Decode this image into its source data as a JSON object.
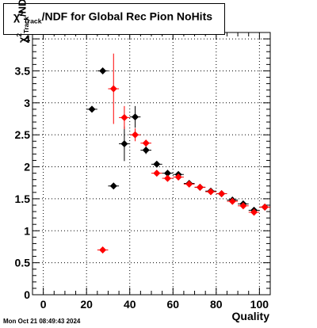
{
  "chart_data": {
    "type": "scatter",
    "title_prefix": "χ",
    "title_sup": "2",
    "title_sub": "Track",
    "title_suffix": "/NDF for Global Rec Pion NoHits",
    "ylabel_prefix": "χ",
    "ylabel_sup": "2",
    "ylabel_sub": "Track",
    "ylabel_suffix": "/NDF",
    "xlabel": "Quality",
    "xlim": [
      -5,
      105
    ],
    "ylim": [
      0,
      4.1
    ],
    "xticks": [
      0,
      20,
      40,
      60,
      80,
      100
    ],
    "yticks": [
      0,
      0.5,
      1,
      1.5,
      2,
      2.5,
      3,
      3.5,
      4
    ],
    "ytick_labels": [
      "0",
      "0.5",
      "1",
      "1.5",
      "2",
      "2.5",
      "3",
      "3.5",
      "4"
    ],
    "grid": true,
    "series": [
      {
        "color": "#000000",
        "points": [
          {
            "x": 22.5,
            "y": 2.9,
            "err": 0.04
          },
          {
            "x": 27.5,
            "y": 3.5,
            "err": 0.03
          },
          {
            "x": 32.5,
            "y": 1.7,
            "err": 0.03
          },
          {
            "x": 37.5,
            "y": 2.36,
            "err": 0.27
          },
          {
            "x": 42.5,
            "y": 2.78,
            "err": 0.17
          },
          {
            "x": 47.5,
            "y": 2.26,
            "err": 0.06
          },
          {
            "x": 52.5,
            "y": 2.04,
            "err": 0.04
          },
          {
            "x": 57.5,
            "y": 1.9,
            "err": 0.03
          },
          {
            "x": 62.5,
            "y": 1.88,
            "err": 0.03
          },
          {
            "x": 67.5,
            "y": 1.74,
            "err": 0.02
          },
          {
            "x": 72.5,
            "y": 1.68,
            "err": 0.02
          },
          {
            "x": 77.5,
            "y": 1.62,
            "err": 0.02
          },
          {
            "x": 82.5,
            "y": 1.58,
            "err": 0.02
          },
          {
            "x": 87.5,
            "y": 1.48,
            "err": 0.02
          },
          {
            "x": 92.5,
            "y": 1.42,
            "err": 0.02
          },
          {
            "x": 97.5,
            "y": 1.32,
            "err": 0.02
          },
          {
            "x": 102.5,
            "y": 1.37,
            "err": 0.02
          }
        ]
      },
      {
        "color": "#ff0000",
        "points": [
          {
            "x": 27.5,
            "y": 0.7,
            "err": 0.02
          },
          {
            "x": 32.5,
            "y": 3.22,
            "err": 0.55
          },
          {
            "x": 37.5,
            "y": 2.77,
            "err": 0.18
          },
          {
            "x": 42.5,
            "y": 2.5,
            "err": 0.1
          },
          {
            "x": 47.5,
            "y": 2.37,
            "err": 0.05
          },
          {
            "x": 52.5,
            "y": 1.9,
            "err": 0.04
          },
          {
            "x": 57.5,
            "y": 1.82,
            "err": 0.03
          },
          {
            "x": 62.5,
            "y": 1.84,
            "err": 0.03
          },
          {
            "x": 67.5,
            "y": 1.73,
            "err": 0.02
          },
          {
            "x": 72.5,
            "y": 1.68,
            "err": 0.02
          },
          {
            "x": 77.5,
            "y": 1.61,
            "err": 0.02
          },
          {
            "x": 82.5,
            "y": 1.58,
            "err": 0.02
          },
          {
            "x": 87.5,
            "y": 1.46,
            "err": 0.02
          },
          {
            "x": 92.5,
            "y": 1.39,
            "err": 0.02
          },
          {
            "x": 97.5,
            "y": 1.29,
            "err": 0.02
          },
          {
            "x": 102.5,
            "y": 1.37,
            "err": 0.02
          }
        ]
      }
    ]
  },
  "timestamp": "Mon Oct 21 08:49:43 2024"
}
